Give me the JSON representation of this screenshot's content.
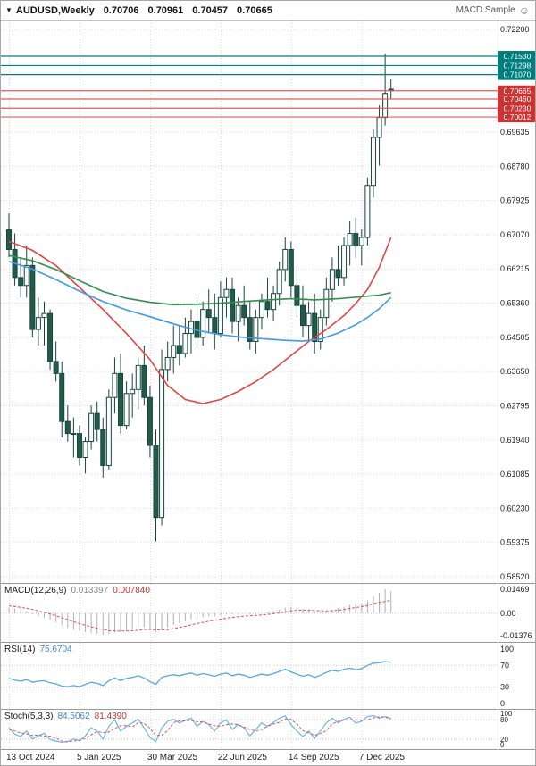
{
  "header": {
    "dropdown_icon": "▼",
    "symbol_period": "AUDUSD,Weekly",
    "open": "0.70706",
    "high": "0.70961",
    "low": "0.70457",
    "close": "0.70665",
    "ea_name": "MACD Sample",
    "ea_status_icon": "☺"
  },
  "colors": {
    "background": "#ffffff",
    "grid": "#d9d9d9",
    "pane_border": "#9a9a9a",
    "axis_text": "#222222",
    "candle_outline": "#17453a",
    "candle_bull_fill": "#f9fcfb",
    "candle_bear_fill": "#225b4c",
    "ma_red": "#e64545",
    "ma_green": "#2f8f4e",
    "ma_blue": "#3d9be9",
    "macd_histogram": "#b0b0b0",
    "macd_signal": "#e05050",
    "rsi_line": "#55a8e0",
    "stoch_main": "#6ab7e8",
    "stoch_signal": "#e05050"
  },
  "chart_data": {
    "type": "candlestick",
    "symbol": "AUDUSD",
    "timeframe": "Weekly",
    "y_axis": {
      "min": 0.5852,
      "max": 0.722,
      "tick_step": 0.00855,
      "ticks": [
        "0.72200",
        "0.69635",
        "0.68780",
        "0.67925",
        "0.67070",
        "0.66215",
        "0.65360",
        "0.64505",
        "0.63650",
        "0.62795",
        "0.61940",
        "0.61085",
        "0.60230",
        "0.59375",
        "0.58520"
      ]
    },
    "x_axis": {
      "labels": [
        {
          "text": "13 Oct 2024",
          "candle_index": 0
        },
        {
          "text": "5 Jan 2025",
          "candle_index": 12
        },
        {
          "text": "30 Mar 2025",
          "candle_index": 24
        },
        {
          "text": "22 Jun 2025",
          "candle_index": 36
        },
        {
          "text": "14 Sep 2025",
          "candle_index": 48
        },
        {
          "text": "7 Dec 2025",
          "candle_index": 60
        }
      ]
    },
    "horizontal_lines": [
      {
        "price": 0.7153,
        "label": "0.71530",
        "role": "resistance",
        "line_color": "#008080",
        "badge_color": "#007e7e"
      },
      {
        "price": 0.71298,
        "label": "0.71298",
        "role": "resistance",
        "line_color": "#008080",
        "badge_color": "#007e7e"
      },
      {
        "price": 0.7107,
        "label": "0.71070",
        "role": "resistance",
        "line_color": "#008080",
        "badge_color": "#007e7e"
      },
      {
        "price": 0.70665,
        "label": "0.70665",
        "role": "current-price",
        "line_color": "#e05c5c",
        "badge_color": "#cc3333"
      },
      {
        "price": 0.7046,
        "label": "0.70460",
        "role": "support",
        "line_color": "#e05c5c",
        "badge_color": "#cc3333"
      },
      {
        "price": 0.7023,
        "label": "0.70230",
        "role": "support",
        "line_color": "#e05c5c",
        "badge_color": "#cc3333"
      },
      {
        "price": 0.70012,
        "label": "0.70012",
        "role": "support",
        "line_color": "#e05c5c",
        "badge_color": "#cc3333"
      }
    ],
    "candles": {
      "open": [
        0.672,
        0.667,
        0.66,
        0.658,
        0.663,
        0.647,
        0.65,
        0.651,
        0.639,
        0.636,
        0.624,
        0.621,
        0.621,
        0.615,
        0.619,
        0.626,
        0.622,
        0.613,
        0.63,
        0.636,
        0.623,
        0.631,
        0.632,
        0.638,
        0.63,
        0.618,
        0.6,
        0.637,
        0.64,
        0.643,
        0.641,
        0.646,
        0.649,
        0.645,
        0.652,
        0.65,
        0.646,
        0.655,
        0.657,
        0.649,
        0.653,
        0.65,
        0.644,
        0.65,
        0.654,
        0.652,
        0.656,
        0.662,
        0.667,
        0.658,
        0.653,
        0.648,
        0.651,
        0.644,
        0.65,
        0.657,
        0.662,
        0.66,
        0.668,
        0.671,
        0.668,
        0.67,
        0.683,
        0.695,
        0.7,
        0.70706
      ],
      "high": [
        0.676,
        0.671,
        0.665,
        0.668,
        0.665,
        0.655,
        0.654,
        0.652,
        0.644,
        0.639,
        0.628,
        0.625,
        0.623,
        0.62,
        0.628,
        0.629,
        0.625,
        0.632,
        0.64,
        0.641,
        0.634,
        0.636,
        0.64,
        0.643,
        0.633,
        0.622,
        0.642,
        0.644,
        0.648,
        0.648,
        0.65,
        0.652,
        0.655,
        0.654,
        0.657,
        0.656,
        0.659,
        0.66,
        0.66,
        0.655,
        0.658,
        0.654,
        0.652,
        0.656,
        0.66,
        0.658,
        0.664,
        0.67,
        0.669,
        0.662,
        0.658,
        0.654,
        0.656,
        0.652,
        0.66,
        0.665,
        0.668,
        0.67,
        0.674,
        0.675,
        0.672,
        0.685,
        0.697,
        0.703,
        0.716,
        0.70961
      ],
      "low": [
        0.665,
        0.658,
        0.655,
        0.655,
        0.645,
        0.643,
        0.643,
        0.637,
        0.634,
        0.62,
        0.619,
        0.615,
        0.613,
        0.611,
        0.617,
        0.619,
        0.61,
        0.612,
        0.626,
        0.621,
        0.622,
        0.625,
        0.627,
        0.628,
        0.615,
        0.594,
        0.598,
        0.634,
        0.636,
        0.638,
        0.64,
        0.641,
        0.642,
        0.643,
        0.646,
        0.642,
        0.645,
        0.65,
        0.646,
        0.644,
        0.648,
        0.642,
        0.641,
        0.647,
        0.65,
        0.649,
        0.653,
        0.659,
        0.655,
        0.65,
        0.645,
        0.644,
        0.641,
        0.642,
        0.648,
        0.654,
        0.658,
        0.658,
        0.663,
        0.665,
        0.663,
        0.668,
        0.68,
        0.688,
        0.698,
        0.70457
      ],
      "close": [
        0.667,
        0.66,
        0.658,
        0.663,
        0.647,
        0.65,
        0.651,
        0.639,
        0.636,
        0.624,
        0.621,
        0.621,
        0.615,
        0.619,
        0.626,
        0.622,
        0.613,
        0.63,
        0.636,
        0.623,
        0.631,
        0.632,
        0.638,
        0.63,
        0.618,
        0.6,
        0.637,
        0.64,
        0.643,
        0.641,
        0.646,
        0.649,
        0.645,
        0.652,
        0.65,
        0.646,
        0.655,
        0.657,
        0.649,
        0.653,
        0.65,
        0.644,
        0.65,
        0.654,
        0.652,
        0.656,
        0.662,
        0.667,
        0.658,
        0.653,
        0.648,
        0.651,
        0.644,
        0.65,
        0.657,
        0.662,
        0.66,
        0.668,
        0.671,
        0.668,
        0.67,
        0.683,
        0.695,
        0.7,
        0.706,
        0.70665
      ]
    },
    "moving_averages": [
      {
        "name": "slow-ma",
        "color_key": "ma_red",
        "points": [
          [
            0,
            0.669
          ],
          [
            4,
            0.6668
          ],
          [
            8,
            0.663
          ],
          [
            12,
            0.6575
          ],
          [
            16,
            0.652
          ],
          [
            20,
            0.646
          ],
          [
            24,
            0.6395
          ],
          [
            27,
            0.633
          ],
          [
            30,
            0.6295
          ],
          [
            33,
            0.6285
          ],
          [
            36,
            0.6295
          ],
          [
            39,
            0.6315
          ],
          [
            42,
            0.634
          ],
          [
            45,
            0.637
          ],
          [
            48,
            0.6405
          ],
          [
            51,
            0.644
          ],
          [
            54,
            0.647
          ],
          [
            57,
            0.6505
          ],
          [
            59,
            0.6535
          ],
          [
            61,
            0.657
          ],
          [
            63,
            0.6625
          ],
          [
            65,
            0.67
          ]
        ]
      },
      {
        "name": "medium-ma",
        "color_key": "ma_green",
        "points": [
          [
            0,
            0.6655
          ],
          [
            4,
            0.6642
          ],
          [
            8,
            0.662
          ],
          [
            12,
            0.6592
          ],
          [
            16,
            0.6565
          ],
          [
            20,
            0.6548
          ],
          [
            24,
            0.6538
          ],
          [
            28,
            0.6532
          ],
          [
            32,
            0.6533
          ],
          [
            36,
            0.6536
          ],
          [
            40,
            0.654
          ],
          [
            44,
            0.6544
          ],
          [
            48,
            0.6547
          ],
          [
            52,
            0.6544
          ],
          [
            56,
            0.6547
          ],
          [
            60,
            0.6552
          ],
          [
            63,
            0.6556
          ],
          [
            65,
            0.6562
          ]
        ]
      },
      {
        "name": "fast-ma",
        "color_key": "ma_blue",
        "points": [
          [
            0,
            0.664
          ],
          [
            4,
            0.6621
          ],
          [
            8,
            0.6595
          ],
          [
            12,
            0.6566
          ],
          [
            16,
            0.654
          ],
          [
            20,
            0.6519
          ],
          [
            24,
            0.6502
          ],
          [
            28,
            0.6484
          ],
          [
            32,
            0.6468
          ],
          [
            36,
            0.6457
          ],
          [
            40,
            0.645
          ],
          [
            44,
            0.6446
          ],
          [
            47,
            0.6443
          ],
          [
            50,
            0.6441
          ],
          [
            53,
            0.6446
          ],
          [
            56,
            0.6461
          ],
          [
            59,
            0.6482
          ],
          [
            61,
            0.65
          ],
          [
            63,
            0.6522
          ],
          [
            65,
            0.655
          ]
        ]
      }
    ],
    "indicators": [
      {
        "id": "macd",
        "label": "MACD(12,26,9)",
        "values_text": [
          "0.013397",
          "0.007840"
        ],
        "axis_labels": [
          "0.01469",
          "0.00",
          "-0.01376"
        ],
        "max": 0.01469,
        "min": -0.01376,
        "histogram": [
          0.0035,
          0.0028,
          0.0018,
          0.001,
          -0.0005,
          -0.0018,
          -0.0028,
          -0.004,
          -0.0055,
          -0.0075,
          -0.009,
          -0.01,
          -0.011,
          -0.0115,
          -0.012,
          -0.0126,
          -0.0132,
          -0.0128,
          -0.0118,
          -0.0115,
          -0.0108,
          -0.01,
          -0.009,
          -0.0085,
          -0.0095,
          -0.0115,
          -0.0105,
          -0.0088,
          -0.0072,
          -0.006,
          -0.0049,
          -0.0038,
          -0.0032,
          -0.0025,
          -0.002,
          -0.0019,
          -0.0013,
          -0.0007,
          -0.0006,
          -0.0004,
          -0.0002,
          -0.0006,
          -0.0005,
          0.0,
          0.0006,
          0.0012,
          0.0022,
          0.0034,
          0.0038,
          0.0032,
          0.0022,
          0.0015,
          0.0008,
          0.0006,
          0.0012,
          0.0022,
          0.003,
          0.004,
          0.0052,
          0.0058,
          0.006,
          0.0078,
          0.0105,
          0.0125,
          0.0147,
          0.013397
        ],
        "signal": [
          0.0045,
          0.0041,
          0.0036,
          0.003,
          0.0023,
          0.0014,
          0.0005,
          -0.0004,
          -0.0015,
          -0.0027,
          -0.004,
          -0.0052,
          -0.0064,
          -0.0074,
          -0.0083,
          -0.0092,
          -0.01,
          -0.0106,
          -0.0108,
          -0.0109,
          -0.0109,
          -0.0107,
          -0.0104,
          -0.01,
          -0.0099,
          -0.0102,
          -0.0103,
          -0.01,
          -0.0094,
          -0.0087,
          -0.008,
          -0.0071,
          -0.0063,
          -0.0056,
          -0.0049,
          -0.0043,
          -0.0037,
          -0.0031,
          -0.0026,
          -0.0022,
          -0.0018,
          -0.0015,
          -0.0013,
          -0.0011,
          -0.0007,
          -0.0003,
          0.0002,
          0.0008,
          0.0014,
          0.0018,
          0.0019,
          0.0018,
          0.0016,
          0.0014,
          0.0014,
          0.0015,
          0.0018,
          0.0023,
          0.0029,
          0.0035,
          0.004,
          0.0047,
          0.0059,
          0.0066,
          0.0072,
          0.00784
        ]
      },
      {
        "id": "rsi",
        "label": "RSI(14)",
        "values_text": [
          "75.6704"
        ],
        "axis_labels": [
          "100",
          "70",
          "30",
          "0"
        ],
        "levels": [
          70,
          30
        ],
        "max": 100,
        "min": 0,
        "values": [
          46,
          43,
          41,
          44,
          39,
          41,
          42,
          38,
          36,
          32,
          31,
          33,
          31,
          35,
          39,
          37,
          33,
          42,
          47,
          42,
          46,
          48,
          51,
          47,
          40,
          35,
          48,
          51,
          53,
          51,
          54,
          56,
          52,
          55,
          53,
          50,
          54,
          56,
          51,
          54,
          52,
          48,
          51,
          54,
          52,
          55,
          59,
          63,
          58,
          54,
          50,
          53,
          48,
          52,
          57,
          61,
          59,
          63,
          65,
          62,
          64,
          70,
          74,
          75,
          77,
          75.6704
        ]
      },
      {
        "id": "stoch",
        "label": "Stoch(5,3,3)",
        "values_text": [
          "84.5062",
          "81.4390"
        ],
        "axis_labels": [
          "100",
          "80",
          "20",
          "0"
        ],
        "levels": [
          80,
          20
        ],
        "max": 100,
        "min": 0,
        "main": [
          55,
          35,
          28,
          45,
          20,
          30,
          38,
          18,
          14,
          10,
          12,
          20,
          15,
          30,
          55,
          45,
          20,
          60,
          80,
          45,
          60,
          70,
          82,
          55,
          25,
          12,
          55,
          75,
          82,
          70,
          78,
          85,
          60,
          75,
          65,
          45,
          70,
          80,
          50,
          65,
          55,
          30,
          50,
          70,
          60,
          72,
          85,
          92,
          65,
          45,
          28,
          45,
          22,
          45,
          70,
          85,
          70,
          82,
          88,
          70,
          75,
          90,
          93,
          85,
          90,
          84.5062
        ],
        "signal": [
          50,
          45,
          39,
          36,
          31,
          32,
          29,
          29,
          23,
          14,
          12,
          14,
          16,
          22,
          33,
          43,
          40,
          42,
          53,
          62,
          62,
          58,
          71,
          69,
          54,
          31,
          31,
          47,
          71,
          76,
          77,
          78,
          74,
          73,
          67,
          62,
          60,
          65,
          67,
          65,
          57,
          50,
          45,
          50,
          60,
          67,
          72,
          83,
          81,
          67,
          46,
          39,
          32,
          37,
          46,
          67,
          75,
          79,
          80,
          80,
          78,
          80,
          86,
          89,
          89,
          81.439
        ]
      }
    ]
  }
}
